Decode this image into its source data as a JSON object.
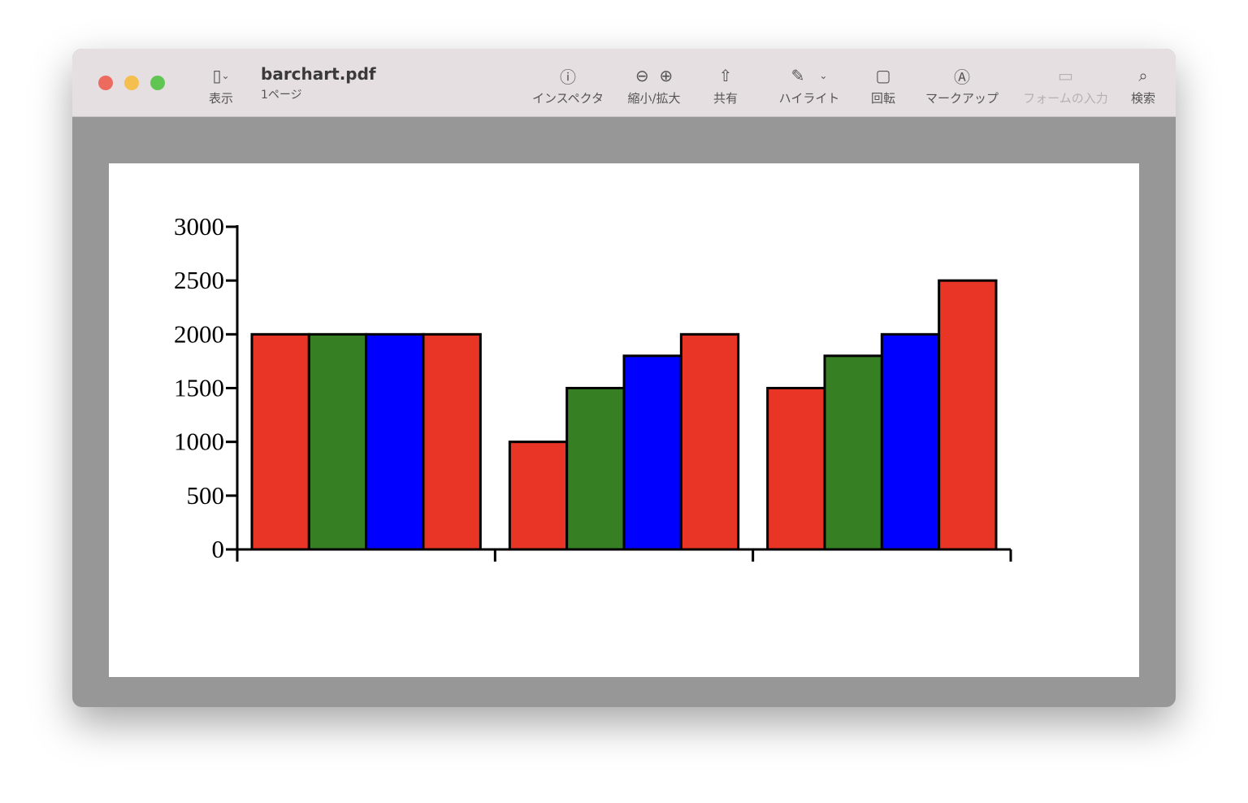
{
  "window": {
    "title": "barchart.pdf",
    "subtitle": "1ページ"
  },
  "toolbar": {
    "view": "表示",
    "inspector": "インスペクタ",
    "zoom": "縮小/拡大",
    "share": "共有",
    "highlight": "ハイライト",
    "rotate": "回転",
    "markup": "マークアップ",
    "form": "フォームの入力",
    "search": "検索"
  },
  "chart_data": {
    "type": "bar",
    "categories": [
      "",
      "",
      ""
    ],
    "series": [
      {
        "values": [
          2000,
          1000,
          1500
        ],
        "color": "#e83526"
      },
      {
        "values": [
          2000,
          1500,
          1800
        ],
        "color": "#367f22"
      },
      {
        "values": [
          2000,
          1800,
          2000
        ],
        "color": "#0000ff"
      },
      {
        "values": [
          2000,
          2000,
          2500
        ],
        "color": "#e83526"
      }
    ],
    "yticks": [
      "0",
      "500",
      "1000",
      "1500",
      "2000",
      "2500",
      "3000"
    ],
    "ylim": [
      0,
      3000
    ],
    "grid": false
  }
}
